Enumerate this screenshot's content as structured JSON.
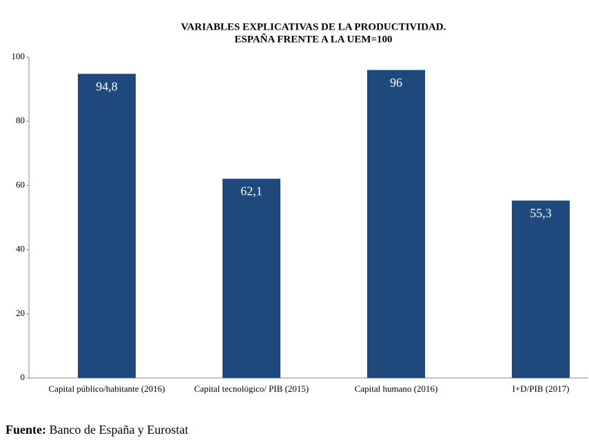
{
  "chart_data": {
    "type": "bar",
    "title": [
      "VARIABLES EXPLICATIVAS DE LA PRODUCTIVIDAD.",
      "ESPAÑA FRENTE A  LA UEM=100"
    ],
    "categories": [
      "Capital público/habitante (2016)",
      "Capital tecnológico/  PIB (2015)",
      "Capital humano (2016)",
      "I+D/PIB (2017)"
    ],
    "values": [
      94.8,
      62.1,
      96,
      55.3
    ],
    "value_labels": [
      "94,8",
      "62,1",
      "96",
      "55,3"
    ],
    "color": "#1f497d",
    "ylim": [
      0,
      100
    ],
    "yticks": [
      0,
      20,
      40,
      60,
      80,
      100
    ],
    "grid": false
  },
  "source": {
    "label": "Fuente:",
    "text": "Banco de España y Eurostat"
  }
}
